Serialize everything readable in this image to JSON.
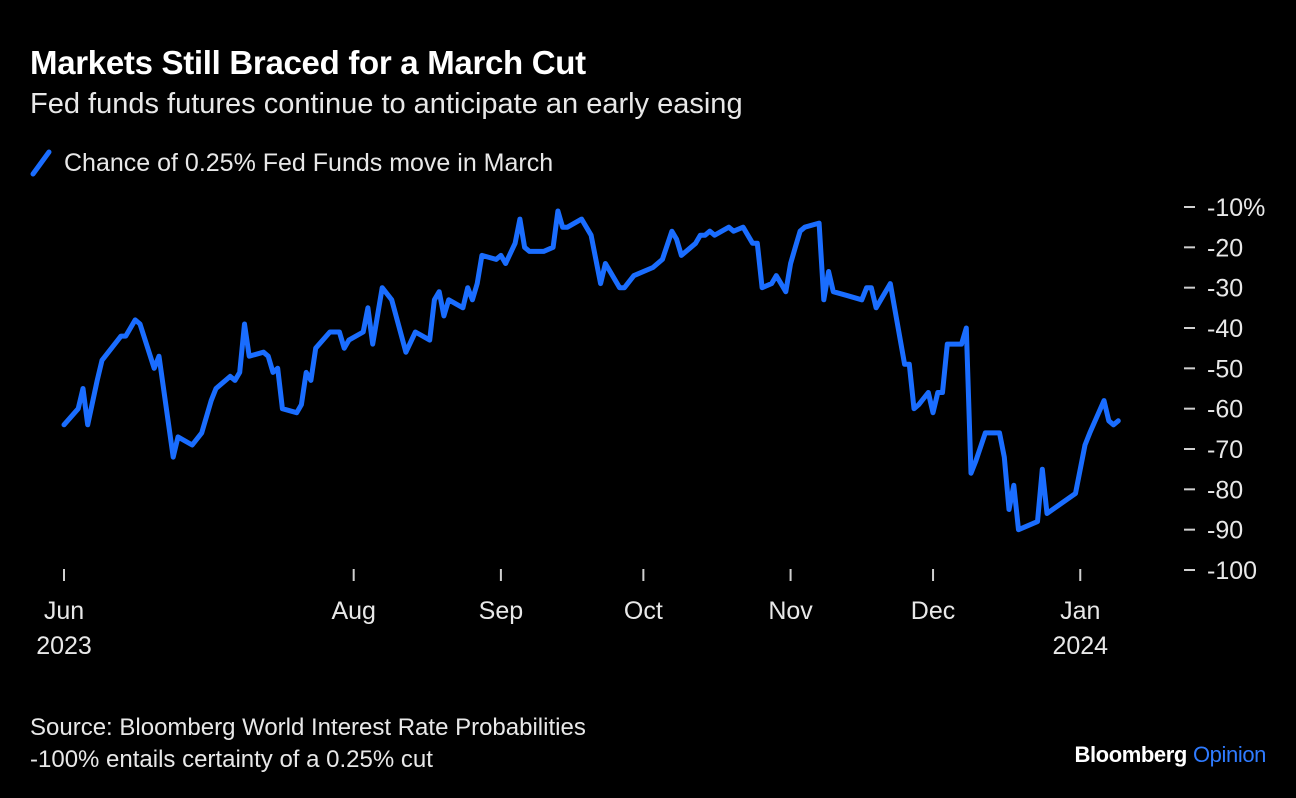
{
  "header": {
    "title": "Markets Still Braced for a March Cut",
    "subtitle": "Fed funds futures continue to anticipate an early easing"
  },
  "footer": {
    "source": "Source: Bloomberg World Interest Rate Probabilities",
    "note": "-100% entails certainty of a 0.25% cut"
  },
  "brand": {
    "name": "Bloomberg",
    "product": "Opinion"
  },
  "colors": {
    "line": "#1a6dff",
    "background": "#000000",
    "text": "#ffffff"
  },
  "chart_data": {
    "type": "line",
    "title": "Markets Still Braced for a March Cut",
    "subtitle": "Fed funds futures continue to anticipate an early easing",
    "legend_position": "top-left",
    "grid": false,
    "ylim": [
      -100,
      -10
    ],
    "y_ticks": [
      -10,
      -20,
      -30,
      -40,
      -50,
      -60,
      -70,
      -80,
      -90,
      -100
    ],
    "y_tick_labels": [
      "-10%",
      "-20",
      "-30",
      "-40",
      "-50",
      "-60",
      "-70",
      "-80",
      "-90",
      "-100"
    ],
    "x_ticks": [
      {
        "date": "2023-06-01",
        "label": "Jun",
        "year": "2023"
      },
      {
        "date": "2023-08-01",
        "label": "Aug",
        "year": ""
      },
      {
        "date": "2023-09-01",
        "label": "Sep",
        "year": ""
      },
      {
        "date": "2023-10-01",
        "label": "Oct",
        "year": ""
      },
      {
        "date": "2023-11-01",
        "label": "Nov",
        "year": ""
      },
      {
        "date": "2023-12-01",
        "label": "Dec",
        "year": ""
      },
      {
        "date": "2024-01-01",
        "label": "Jan",
        "year": "2024"
      }
    ],
    "xlim": [
      "2023-06-01",
      "2024-01-10"
    ],
    "series": [
      {
        "name": "Chance of 0.25% Fed Funds move in March",
        "points": [
          [
            "2023-06-01",
            -64
          ],
          [
            "2023-06-04",
            -60
          ],
          [
            "2023-06-05",
            -55
          ],
          [
            "2023-06-06",
            -64
          ],
          [
            "2023-06-08",
            -53
          ],
          [
            "2023-06-09",
            -48
          ],
          [
            "2023-06-13",
            -42
          ],
          [
            "2023-06-14",
            -42
          ],
          [
            "2023-06-16",
            -38
          ],
          [
            "2023-06-17",
            -39
          ],
          [
            "2023-06-20",
            -50
          ],
          [
            "2023-06-21",
            -47
          ],
          [
            "2023-06-24",
            -72
          ],
          [
            "2023-06-25",
            -67
          ],
          [
            "2023-06-28",
            -69
          ],
          [
            "2023-06-30",
            -66
          ],
          [
            "2023-07-02",
            -58
          ],
          [
            "2023-07-03",
            -55
          ],
          [
            "2023-07-06",
            -52
          ],
          [
            "2023-07-07",
            -53
          ],
          [
            "2023-07-08",
            -51
          ],
          [
            "2023-07-09",
            -39
          ],
          [
            "2023-07-10",
            -47
          ],
          [
            "2023-07-13",
            -46
          ],
          [
            "2023-07-14",
            -47
          ],
          [
            "2023-07-15",
            -51
          ],
          [
            "2023-07-16",
            -50
          ],
          [
            "2023-07-17",
            -60
          ],
          [
            "2023-07-20",
            -61
          ],
          [
            "2023-07-21",
            -59
          ],
          [
            "2023-07-22",
            -51
          ],
          [
            "2023-07-23",
            -53
          ],
          [
            "2023-07-24",
            -45
          ],
          [
            "2023-07-27",
            -41
          ],
          [
            "2023-07-29",
            -41
          ],
          [
            "2023-07-30",
            -45
          ],
          [
            "2023-07-31",
            -43
          ],
          [
            "2023-08-03",
            -41
          ],
          [
            "2023-08-04",
            -35
          ],
          [
            "2023-08-05",
            -44
          ],
          [
            "2023-08-07",
            -30
          ],
          [
            "2023-08-09",
            -33
          ],
          [
            "2023-08-12",
            -46
          ],
          [
            "2023-08-14",
            -41
          ],
          [
            "2023-08-17",
            -43
          ],
          [
            "2023-08-18",
            -33
          ],
          [
            "2023-08-19",
            -31
          ],
          [
            "2023-08-20",
            -37
          ],
          [
            "2023-08-21",
            -33
          ],
          [
            "2023-08-24",
            -35
          ],
          [
            "2023-08-25",
            -30
          ],
          [
            "2023-08-26",
            -33
          ],
          [
            "2023-08-27",
            -29
          ],
          [
            "2023-08-28",
            -22
          ],
          [
            "2023-08-31",
            -23
          ],
          [
            "2023-09-01",
            -22
          ],
          [
            "2023-09-02",
            -24
          ],
          [
            "2023-09-04",
            -19
          ],
          [
            "2023-09-05",
            -13
          ],
          [
            "2023-09-06",
            -20
          ],
          [
            "2023-09-07",
            -21
          ],
          [
            "2023-09-10",
            -21
          ],
          [
            "2023-09-12",
            -20
          ],
          [
            "2023-09-13",
            -11
          ],
          [
            "2023-09-14",
            -15
          ],
          [
            "2023-09-15",
            -15
          ],
          [
            "2023-09-18",
            -13
          ],
          [
            "2023-09-20",
            -17
          ],
          [
            "2023-09-22",
            -29
          ],
          [
            "2023-09-23",
            -24
          ],
          [
            "2023-09-26",
            -30
          ],
          [
            "2023-09-27",
            -30
          ],
          [
            "2023-09-29",
            -27
          ],
          [
            "2023-10-03",
            -25
          ],
          [
            "2023-10-05",
            -23
          ],
          [
            "2023-10-07",
            -16
          ],
          [
            "2023-10-08",
            -18
          ],
          [
            "2023-10-09",
            -22
          ],
          [
            "2023-10-12",
            -19
          ],
          [
            "2023-10-13",
            -17
          ],
          [
            "2023-10-14",
            -17
          ],
          [
            "2023-10-15",
            -16
          ],
          [
            "2023-10-16",
            -17
          ],
          [
            "2023-10-19",
            -15
          ],
          [
            "2023-10-20",
            -16
          ],
          [
            "2023-10-22",
            -15
          ],
          [
            "2023-10-24",
            -19
          ],
          [
            "2023-10-25",
            -19
          ],
          [
            "2023-10-26",
            -30
          ],
          [
            "2023-10-28",
            -29
          ],
          [
            "2023-10-29",
            -27
          ],
          [
            "2023-10-31",
            -31
          ],
          [
            "2023-11-01",
            -24
          ],
          [
            "2023-11-02",
            -20
          ],
          [
            "2023-11-03",
            -16
          ],
          [
            "2023-11-04",
            -15
          ],
          [
            "2023-11-07",
            -14
          ],
          [
            "2023-11-08",
            -33
          ],
          [
            "2023-11-09",
            -26
          ],
          [
            "2023-11-10",
            -31
          ],
          [
            "2023-11-13",
            -32
          ],
          [
            "2023-11-16",
            -33
          ],
          [
            "2023-11-17",
            -30
          ],
          [
            "2023-11-18",
            -30
          ],
          [
            "2023-11-19",
            -35
          ],
          [
            "2023-11-22",
            -29
          ],
          [
            "2023-11-25",
            -49
          ],
          [
            "2023-11-26",
            -49
          ],
          [
            "2023-11-27",
            -60
          ],
          [
            "2023-11-28",
            -59
          ],
          [
            "2023-11-30",
            -56
          ],
          [
            "2023-12-01",
            -61
          ],
          [
            "2023-12-02",
            -56
          ],
          [
            "2023-12-03",
            -56
          ],
          [
            "2023-12-04",
            -44
          ],
          [
            "2023-12-07",
            -44
          ],
          [
            "2023-12-08",
            -40
          ],
          [
            "2023-12-09",
            -76
          ],
          [
            "2023-12-10",
            -73
          ],
          [
            "2023-12-12",
            -66
          ],
          [
            "2023-12-15",
            -66
          ],
          [
            "2023-12-16",
            -72
          ],
          [
            "2023-12-17",
            -85
          ],
          [
            "2023-12-18",
            -79
          ],
          [
            "2023-12-19",
            -90
          ],
          [
            "2023-12-23",
            -88
          ],
          [
            "2023-12-24",
            -75
          ],
          [
            "2023-12-25",
            -86
          ],
          [
            "2023-12-31",
            -81
          ],
          [
            "2024-01-02",
            -69
          ],
          [
            "2024-01-03",
            -66
          ],
          [
            "2024-01-06",
            -58
          ],
          [
            "2024-01-07",
            -63
          ],
          [
            "2024-01-08",
            -64
          ],
          [
            "2024-01-09",
            -63
          ]
        ]
      }
    ]
  }
}
